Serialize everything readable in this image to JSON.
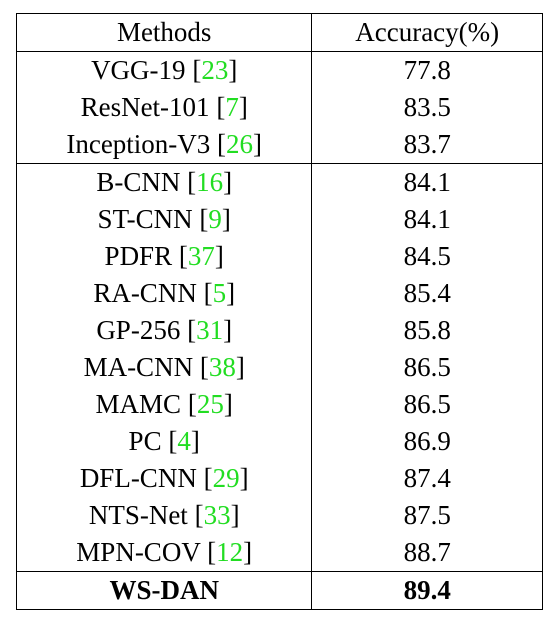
{
  "table": {
    "headers": {
      "method": "Methods",
      "accuracy": "Accuracy(%)"
    },
    "groups": [
      {
        "rows": [
          {
            "method": "VGG-19",
            "ref": "23",
            "accuracy": "77.8"
          },
          {
            "method": "ResNet-101",
            "ref": "7",
            "accuracy": "83.5"
          },
          {
            "method": "Inception-V3",
            "ref": "26",
            "accuracy": "83.7"
          }
        ]
      },
      {
        "rows": [
          {
            "method": "B-CNN",
            "ref": "16",
            "accuracy": "84.1"
          },
          {
            "method": "ST-CNN",
            "ref": "9",
            "accuracy": "84.1"
          },
          {
            "method": "PDFR",
            "ref": "37",
            "accuracy": "84.5"
          },
          {
            "method": "RA-CNN",
            "ref": "5",
            "accuracy": "85.4"
          },
          {
            "method": "GP-256",
            "ref": "31",
            "accuracy": "85.8"
          },
          {
            "method": "MA-CNN",
            "ref": "38",
            "accuracy": "86.5"
          },
          {
            "method": "MAMC",
            "ref": "25",
            "accuracy": "86.5"
          },
          {
            "method": "PC",
            "ref": "4",
            "accuracy": "86.9"
          },
          {
            "method": "DFL-CNN",
            "ref": "29",
            "accuracy": "87.4"
          },
          {
            "method": "NTS-Net",
            "ref": "33",
            "accuracy": "87.5"
          },
          {
            "method": "MPN-COV",
            "ref": "12",
            "accuracy": "88.7"
          }
        ]
      }
    ],
    "ours": {
      "method": "WS-DAN",
      "accuracy": "89.4"
    },
    "colors": {
      "reference_link": "#22dd22",
      "text": "#000000",
      "rule": "#000000"
    }
  }
}
